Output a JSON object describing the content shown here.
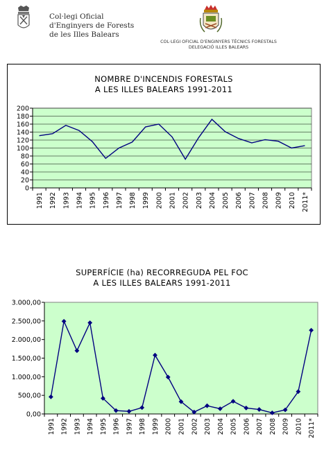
{
  "header": {
    "org_left_line1": "Col·legi Oficial",
    "org_left_line2": "d'Enginyers de Forests",
    "org_left_line3": "de les Illes Balears",
    "org_right_line1": "COL·LEGI OFICIAL D'ENGINYERS TÈCNICS FORESTALS",
    "org_right_line2": "DELEGACIÓ ILLES BALEARS"
  },
  "colors": {
    "plot_bg": "#ccffcc",
    "line": "#000080",
    "grid": "#000000"
  },
  "chart_data": [
    {
      "type": "line",
      "title_line1": "NOMBRE D'INCENDIS FORESTALS",
      "title_line2": "A LES ILLES BALEARS 1991-2011",
      "categories": [
        "1991",
        "1992",
        "1993",
        "1994",
        "1995",
        "1996",
        "1997",
        "1998",
        "1999",
        "2000",
        "2001",
        "2002",
        "2003",
        "2004",
        "2005",
        "2006",
        "2007",
        "2008",
        "2009",
        "2010",
        "2011*"
      ],
      "values": [
        131,
        136,
        157,
        144,
        116,
        74,
        100,
        115,
        153,
        160,
        128,
        72,
        126,
        172,
        141,
        124,
        113,
        121,
        117,
        100,
        106
      ],
      "ylim": [
        0,
        200
      ],
      "yticks": [
        "0",
        "20",
        "40",
        "60",
        "80",
        "100",
        "120",
        "140",
        "160",
        "180",
        "200"
      ],
      "markers": false,
      "grid": true
    },
    {
      "type": "line",
      "title_line1": "SUPERFÍCIE (ha) RECORREGUDA PEL FOC",
      "title_line2": "A LES ILLES BALEARS 1991-2011",
      "categories": [
        "1991",
        "1992",
        "1993",
        "1994",
        "1995",
        "1996",
        "1997",
        "1998",
        "1999",
        "2000",
        "2001",
        "2002",
        "2003",
        "2004",
        "2005",
        "2006",
        "2007",
        "2008",
        "2009",
        "2010",
        "2011*"
      ],
      "values": [
        460,
        2490,
        1700,
        2450,
        420,
        90,
        70,
        170,
        1580,
        990,
        330,
        50,
        220,
        140,
        340,
        160,
        120,
        30,
        110,
        600,
        2250
      ],
      "ylim": [
        0,
        3000
      ],
      "yticks": [
        "0,00",
        "500,00",
        "1.000,00",
        "1.500,00",
        "2.000,00",
        "2.500,00",
        "3.000,00"
      ],
      "markers": true,
      "grid": false
    }
  ]
}
